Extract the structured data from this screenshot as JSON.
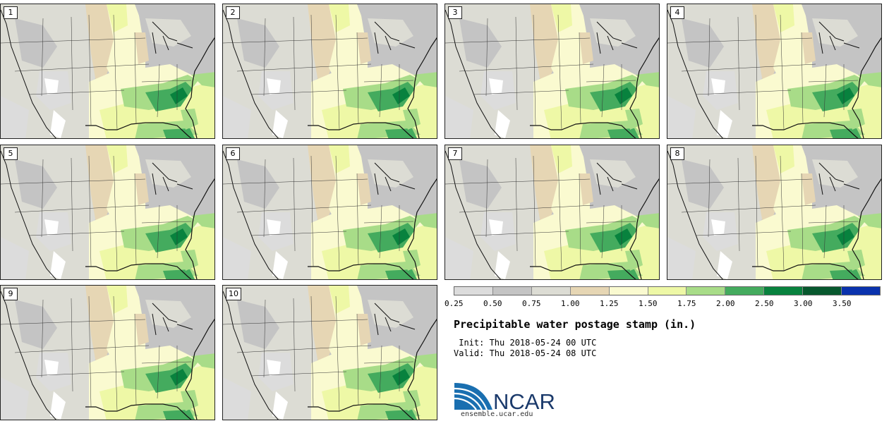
{
  "panels": [
    {
      "label": "1"
    },
    {
      "label": "2"
    },
    {
      "label": "3"
    },
    {
      "label": "4"
    },
    {
      "label": "5"
    },
    {
      "label": "6"
    },
    {
      "label": "7"
    },
    {
      "label": "8"
    },
    {
      "label": "9"
    },
    {
      "label": "10"
    }
  ],
  "colorbar": {
    "colors": [
      "#dcdcdc",
      "#c4c4c4",
      "#dcdcd4",
      "#e6d6b4",
      "#fafad0",
      "#eef8a6",
      "#a8dc88",
      "#44ab5e",
      "#08823e",
      "#07582e",
      "#0a32ad"
    ],
    "tick_labels": [
      "0.25",
      "0.50",
      "0.75",
      "1.00",
      "1.25",
      "1.50",
      "1.75",
      "2.00",
      "2.50",
      "3.00",
      "3.50"
    ]
  },
  "title": "Precipitable water postage stamp (in.)",
  "init": " Init: Thu 2018-05-24 00 UTC",
  "valid": "Valid: Thu 2018-05-24 08 UTC",
  "logo": {
    "text": "NCAR",
    "url": "ensemble.ucar.edu"
  }
}
